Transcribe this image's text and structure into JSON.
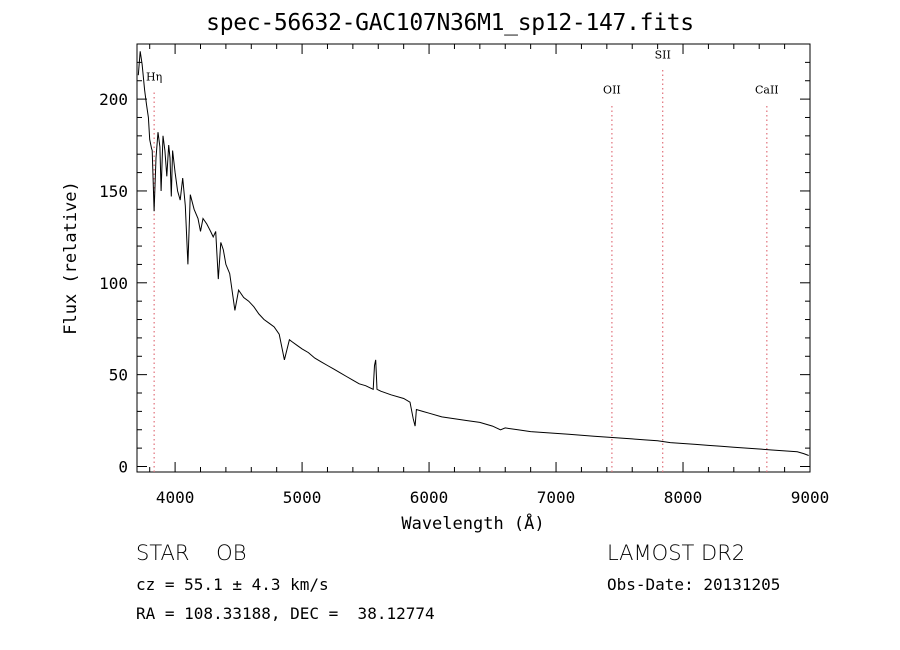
{
  "chart_data": {
    "type": "line",
    "title": "spec-56632-GAC107N36M1_sp12-147.fits",
    "xlabel": "Wavelength (Å)",
    "ylabel": "Flux (relative)",
    "xlim": [
      3700,
      9000
    ],
    "ylim": [
      -3,
      230
    ],
    "x_ticks": [
      4000,
      5000,
      6000,
      7000,
      8000,
      9000
    ],
    "y_ticks": [
      0,
      50,
      100,
      150,
      200
    ],
    "grid": false,
    "series": [
      {
        "color": "#000000",
        "points": [
          [
            3710,
            213
          ],
          [
            3725,
            226
          ],
          [
            3740,
            219
          ],
          [
            3760,
            205
          ],
          [
            3775,
            197
          ],
          [
            3790,
            190
          ],
          [
            3800,
            178
          ],
          [
            3815,
            173
          ],
          [
            3820,
            172
          ],
          [
            3835,
            139
          ],
          [
            3850,
            168
          ],
          [
            3865,
            182
          ],
          [
            3880,
            174
          ],
          [
            3890,
            150
          ],
          [
            3905,
            180
          ],
          [
            3920,
            172
          ],
          [
            3935,
            158
          ],
          [
            3950,
            175
          ],
          [
            3960,
            168
          ],
          [
            3970,
            147
          ],
          [
            3980,
            172
          ],
          [
            4000,
            160
          ],
          [
            4020,
            150
          ],
          [
            4040,
            145
          ],
          [
            4060,
            157
          ],
          [
            4080,
            142
          ],
          [
            4101,
            110
          ],
          [
            4120,
            148
          ],
          [
            4150,
            140
          ],
          [
            4180,
            135
          ],
          [
            4200,
            128
          ],
          [
            4220,
            135
          ],
          [
            4250,
            132
          ],
          [
            4280,
            128
          ],
          [
            4300,
            125
          ],
          [
            4320,
            128
          ],
          [
            4340,
            102
          ],
          [
            4360,
            122
          ],
          [
            4380,
            118
          ],
          [
            4400,
            110
          ],
          [
            4430,
            105
          ],
          [
            4471,
            85
          ],
          [
            4500,
            96
          ],
          [
            4540,
            92
          ],
          [
            4580,
            90
          ],
          [
            4620,
            87
          ],
          [
            4660,
            83
          ],
          [
            4700,
            80
          ],
          [
            4740,
            78
          ],
          [
            4780,
            76
          ],
          [
            4820,
            72
          ],
          [
            4861,
            58
          ],
          [
            4900,
            69
          ],
          [
            4920,
            68
          ],
          [
            4960,
            66
          ],
          [
            5000,
            64
          ],
          [
            5050,
            62
          ],
          [
            5100,
            59
          ],
          [
            5150,
            57
          ],
          [
            5200,
            55
          ],
          [
            5250,
            53
          ],
          [
            5300,
            51
          ],
          [
            5350,
            49
          ],
          [
            5400,
            47
          ],
          [
            5450,
            45
          ],
          [
            5500,
            44
          ],
          [
            5560,
            42
          ],
          [
            5570,
            55
          ],
          [
            5580,
            58
          ],
          [
            5590,
            42
          ],
          [
            5620,
            41
          ],
          [
            5700,
            39
          ],
          [
            5800,
            37
          ],
          [
            5850,
            35
          ],
          [
            5875,
            26
          ],
          [
            5890,
            22
          ],
          [
            5900,
            31
          ],
          [
            5950,
            30
          ],
          [
            6000,
            29
          ],
          [
            6100,
            27
          ],
          [
            6200,
            26
          ],
          [
            6300,
            25
          ],
          [
            6400,
            24
          ],
          [
            6500,
            22
          ],
          [
            6563,
            20
          ],
          [
            6600,
            21
          ],
          [
            6700,
            20
          ],
          [
            6800,
            19
          ],
          [
            6900,
            18.5
          ],
          [
            7000,
            18
          ],
          [
            7100,
            17.5
          ],
          [
            7200,
            17
          ],
          [
            7300,
            16.5
          ],
          [
            7400,
            16
          ],
          [
            7500,
            15.5
          ],
          [
            7600,
            15
          ],
          [
            7700,
            14.5
          ],
          [
            7800,
            14
          ],
          [
            7900,
            13
          ],
          [
            8000,
            12.5
          ],
          [
            8100,
            12
          ],
          [
            8200,
            11.5
          ],
          [
            8300,
            11
          ],
          [
            8400,
            10.5
          ],
          [
            8500,
            10
          ],
          [
            8600,
            9.5
          ],
          [
            8700,
            9
          ],
          [
            8800,
            8.5
          ],
          [
            8900,
            8
          ],
          [
            8950,
            7
          ],
          [
            8990,
            6
          ]
        ]
      }
    ],
    "annotations": [
      {
        "label": "Hη",
        "x": 3835,
        "y": 210
      },
      {
        "label": "OII",
        "x": 7440,
        "y": 203
      },
      {
        "label": "SII",
        "x": 7840,
        "y": 222
      },
      {
        "label": "CaII",
        "x": 8660,
        "y": 203
      }
    ],
    "marker_color": "#e0707a"
  },
  "info": {
    "class_line": "STAR    OB",
    "survey": "LAMOST DR2",
    "cz": "cz = 55.1 ± 4.3 km/s",
    "obs_date": "Obs-Date: 20131205",
    "coords": "RA = 108.33188, DEC =  38.12774"
  }
}
